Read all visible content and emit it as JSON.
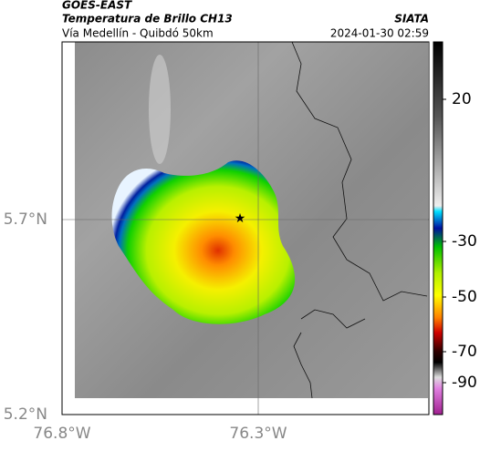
{
  "header": {
    "agency": "GOES-EAST",
    "title": "Temperatura de Brillo CH13",
    "source": "SIATA",
    "subtitle": "Vía Medellín - Quibdó 50km",
    "datetime": "2024-01-30 02:59"
  },
  "map": {
    "lat_labels": [
      "5.7°N",
      "5.2°N"
    ],
    "lon_labels": [
      "76.8°W",
      "76.3°W"
    ]
  },
  "colorbar": {
    "labels": [
      "20",
      "-30",
      "-50",
      "-70",
      "-90"
    ]
  }
}
